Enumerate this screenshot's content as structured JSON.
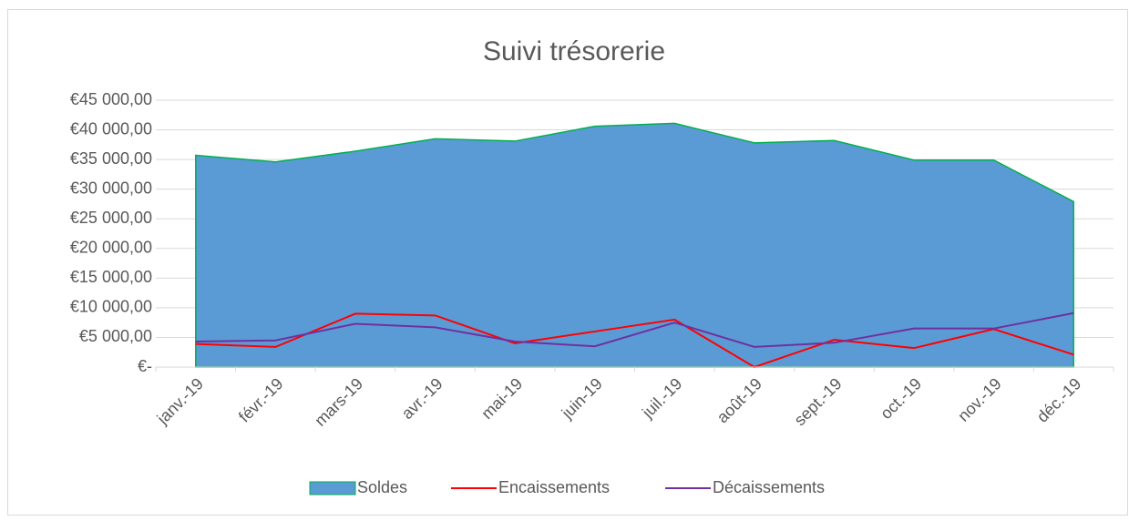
{
  "chart_data": {
    "type": "area-line",
    "title": "Suivi trésorerie",
    "categories": [
      "janv.-19",
      "févr.-19",
      "mars-19",
      "avr.-19",
      "mai-19",
      "juin-19",
      "juil.-19",
      "août-19",
      "sept.-19",
      "oct.-19",
      "nov.-19",
      "déc.-19"
    ],
    "series": [
      {
        "name": "Soldes",
        "kind": "area",
        "color": "#5b9bd5",
        "stroke": "#00b050",
        "values": [
          35700,
          34600,
          36400,
          38500,
          38100,
          40600,
          41100,
          37800,
          38200,
          34900,
          34900,
          27900
        ]
      },
      {
        "name": "Encaissements",
        "kind": "line",
        "color": "#ff0000",
        "values": [
          3900,
          3400,
          9000,
          8700,
          4000,
          6000,
          8000,
          0,
          4600,
          3200,
          6400,
          2100
        ]
      },
      {
        "name": "Décaissements",
        "kind": "line",
        "color": "#7030a0",
        "values": [
          4300,
          4500,
          7300,
          6700,
          4300,
          3500,
          7500,
          3400,
          4100,
          6500,
          6500,
          9100
        ]
      }
    ],
    "ylim": [
      0,
      45000
    ],
    "yticks": [
      {
        "value": 0,
        "label": "€-"
      },
      {
        "value": 5000,
        "label": "€5 000,00"
      },
      {
        "value": 10000,
        "label": "€10 000,00"
      },
      {
        "value": 15000,
        "label": "€15 000,00"
      },
      {
        "value": 20000,
        "label": "€20 000,00"
      },
      {
        "value": 25000,
        "label": "€25 000,00"
      },
      {
        "value": 30000,
        "label": "€30 000,00"
      },
      {
        "value": 35000,
        "label": "€35 000,00"
      },
      {
        "value": 40000,
        "label": "€40 000,00"
      },
      {
        "value": 45000,
        "label": "€45 000,00"
      }
    ],
    "grid": true,
    "legend": "bottom"
  }
}
